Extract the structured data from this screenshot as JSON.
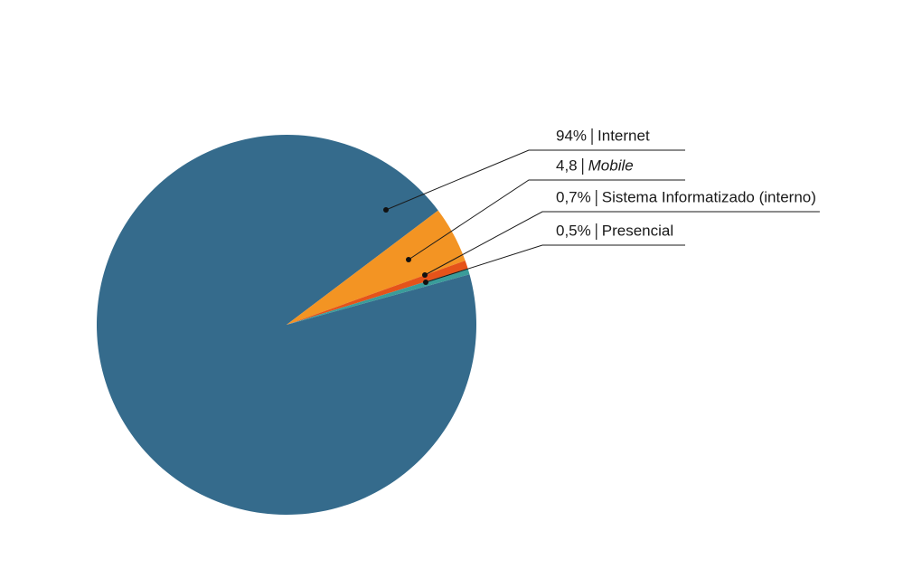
{
  "chart_data": {
    "type": "pie",
    "categories": [
      "Internet",
      "Mobile",
      "Sistema Informatizado (interno)",
      "Presencial"
    ],
    "values": [
      94,
      4.8,
      0.7,
      0.5
    ],
    "value_labels": [
      "94%",
      "4,8",
      "0,7%",
      "0,5%"
    ],
    "colors": [
      "#356b8c",
      "#f39423",
      "#e5531a",
      "#3a9c9a"
    ]
  }
}
